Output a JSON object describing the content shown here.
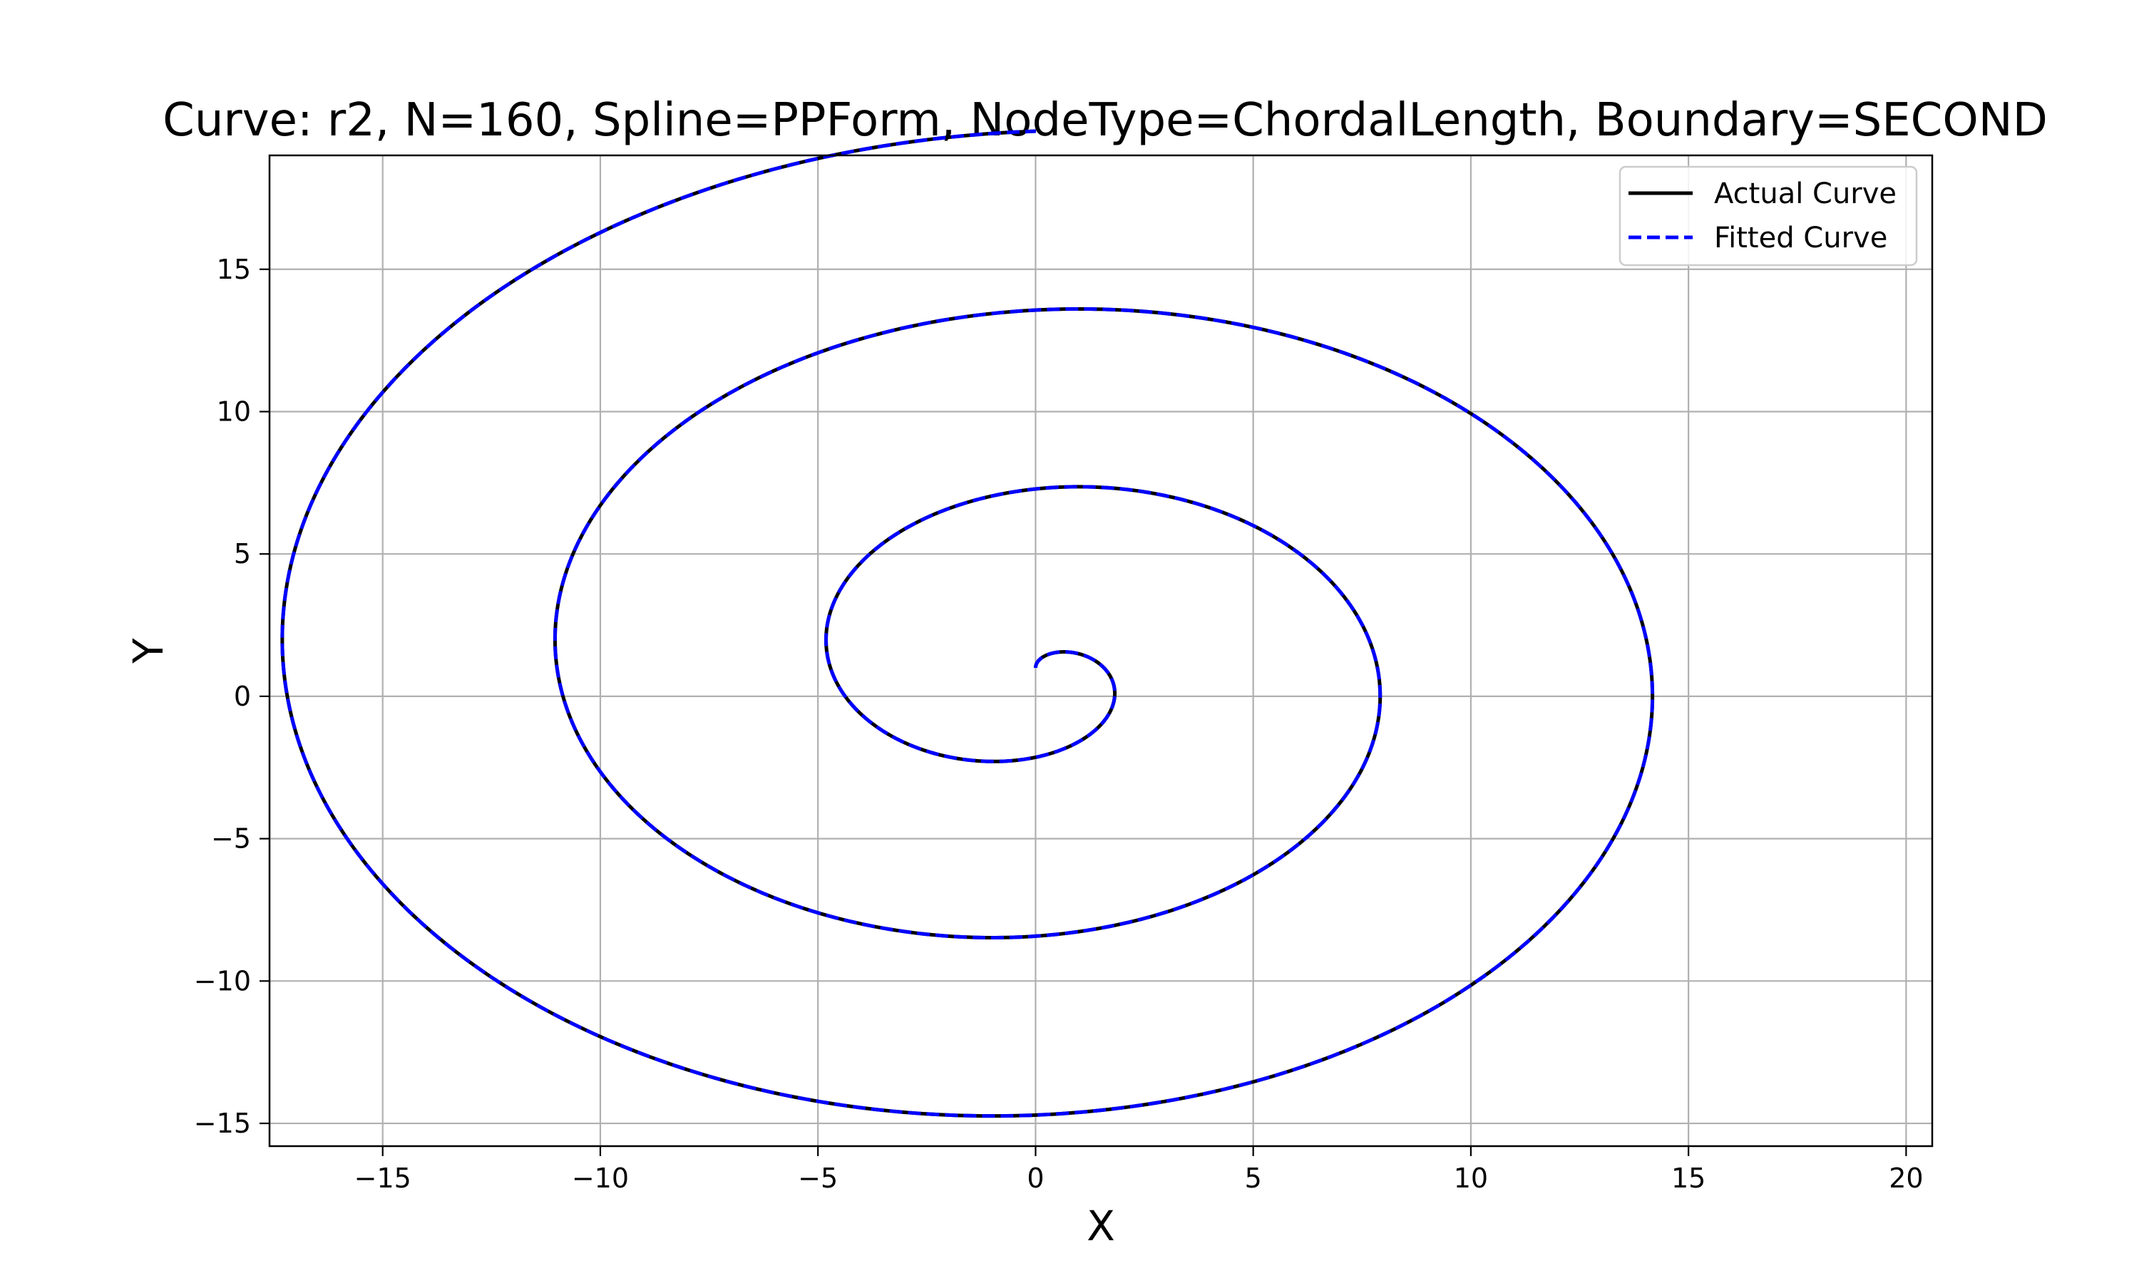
{
  "chart_data": {
    "type": "line",
    "title": "Curve: r2, N=160, Spline=PPForm, NodeType=ChordalLength, Boundary=SECOND",
    "xlabel": "X",
    "ylabel": "Y",
    "xlim": [
      -17.6,
      20.6
    ],
    "ylim": [
      -15.8,
      19.0
    ],
    "xticks": [
      -15,
      -10,
      -5,
      0,
      5,
      10,
      15,
      20
    ],
    "yticks": [
      -15,
      -10,
      -5,
      0,
      5,
      10,
      15
    ],
    "xtick_labels": [
      "−15",
      "−10",
      "−5",
      "0",
      "5",
      "10",
      "15",
      "20"
    ],
    "ytick_labels": [
      "−15",
      "−10",
      "−5",
      "0",
      "5",
      "10",
      "15"
    ],
    "grid": true,
    "legend_position": "top-right",
    "series": [
      {
        "name": "Actual Curve",
        "color": "#000000",
        "style": "solid",
        "curve": "spiral",
        "param": {
          "t_start": 0,
          "t_end": 18.85,
          "x_equation": "t*sin(t)",
          "y_equation": "t*cos(t)+1"
        }
      },
      {
        "name": "Fitted Curve",
        "color": "#0000ff",
        "style": "dashed",
        "curve": "spiral",
        "param": {
          "t_start": 0,
          "t_end": 18.85,
          "x_equation": "t*sin(t)",
          "y_equation": "t*cos(t)+1"
        }
      }
    ]
  }
}
